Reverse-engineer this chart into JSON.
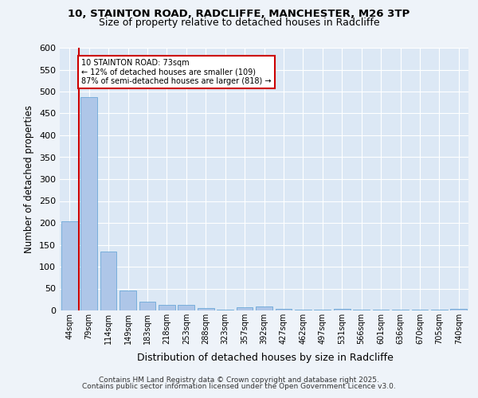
{
  "title1": "10, STAINTON ROAD, RADCLIFFE, MANCHESTER, M26 3TP",
  "title2": "Size of property relative to detached houses in Radcliffe",
  "xlabel": "Distribution of detached houses by size in Radcliffe",
  "ylabel": "Number of detached properties",
  "categories": [
    "44sqm",
    "79sqm",
    "114sqm",
    "149sqm",
    "183sqm",
    "218sqm",
    "253sqm",
    "288sqm",
    "323sqm",
    "357sqm",
    "392sqm",
    "427sqm",
    "462sqm",
    "497sqm",
    "531sqm",
    "566sqm",
    "601sqm",
    "636sqm",
    "670sqm",
    "705sqm",
    "740sqm"
  ],
  "values": [
    203,
    488,
    135,
    46,
    20,
    13,
    12,
    6,
    2,
    8,
    10,
    3,
    2,
    2,
    3,
    1,
    2,
    1,
    1,
    1,
    3
  ],
  "bar_color": "#aec6e8",
  "bar_edge_color": "#5a9fd4",
  "highlight_color": "#cc0000",
  "annotation_text": "10 STAINTON ROAD: 73sqm\n← 12% of detached houses are smaller (109)\n87% of semi-detached houses are larger (818) →",
  "annotation_box_color": "#cc0000",
  "bg_color": "#eef3f9",
  "plot_bg_color": "#dce8f5",
  "grid_color": "#ffffff",
  "footer1": "Contains HM Land Registry data © Crown copyright and database right 2025.",
  "footer2": "Contains public sector information licensed under the Open Government Licence v3.0.",
  "ylim": [
    0,
    600
  ],
  "yticks": [
    0,
    50,
    100,
    150,
    200,
    250,
    300,
    350,
    400,
    450,
    500,
    550,
    600
  ]
}
